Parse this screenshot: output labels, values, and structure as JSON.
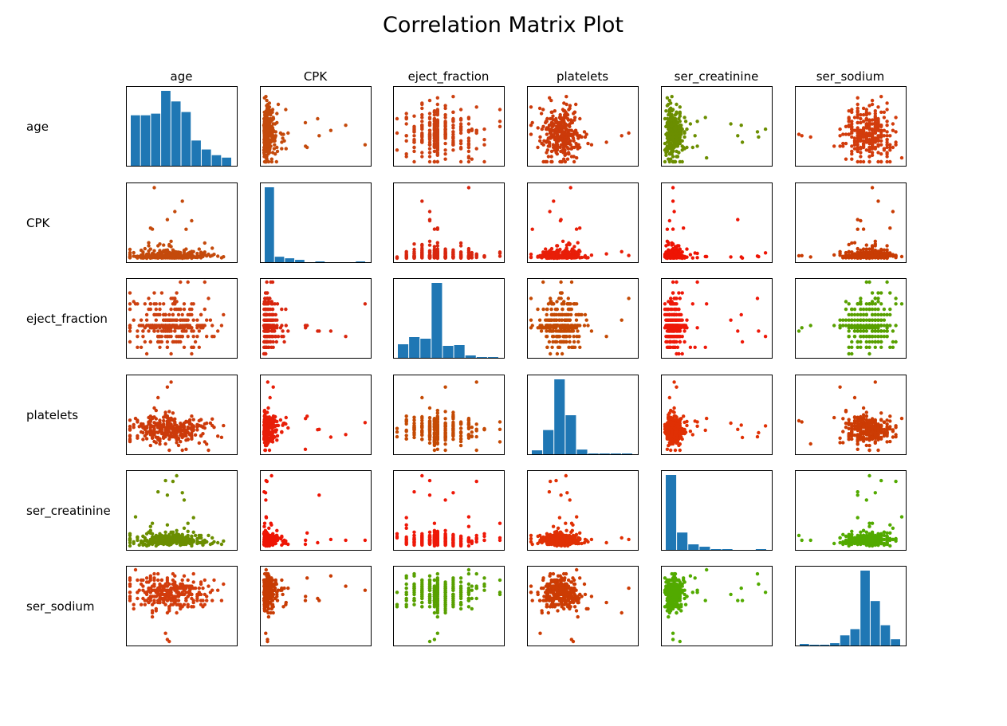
{
  "chart_data": {
    "type": "scatter",
    "title": "Correlation Matrix Plot",
    "variables": [
      "age",
      "CPK",
      "eject_fraction",
      "platelets",
      "ser_creatinine",
      "ser_sodium"
    ],
    "diagonal": "histogram",
    "off_diagonal": "scatter",
    "grid": false,
    "ticks": false,
    "colors": {
      "histogram": "#1f77b4",
      "pairs": {
        "age|CPK": "#c44a0c",
        "age|eject_fraction": "#cc4010",
        "age|platelets": "#cc3a0a",
        "age|ser_creatinine": "#6b8e00",
        "age|ser_sodium": "#d23c0c",
        "CPK|eject_fraction": "#d8260e",
        "CPK|platelets": "#e81e08",
        "CPK|ser_creatinine": "#ee1404",
        "CPK|ser_sodium": "#c83c04",
        "eject_fraction|platelets": "#c44a04",
        "eject_fraction|ser_creatinine": "#ee1808",
        "eject_fraction|ser_sodium": "#58a000",
        "platelets|ser_creatinine": "#e03004",
        "platelets|ser_sodium": "#cc3c04",
        "ser_creatinine|ser_sodium": "#52aa00"
      }
    },
    "histograms": {
      "age": [
        62,
        62,
        64,
        92,
        79,
        66,
        31,
        20,
        13,
        10
      ],
      "CPK": [
        96,
        7,
        5,
        3,
        0,
        1,
        0,
        0,
        0,
        1
      ],
      "eject_fraction": [
        17,
        26,
        24,
        94,
        15,
        16,
        3,
        1,
        1
      ],
      "platelets": [
        5,
        31,
        96,
        50,
        6,
        1,
        1,
        1,
        1
      ],
      "ser_creatinine": [
        95,
        22,
        7,
        4,
        1,
        1,
        0,
        0,
        1
      ],
      "ser_sodium": [
        2,
        1,
        1,
        3,
        13,
        21,
        96,
        57,
        26,
        8
      ]
    },
    "ranges": {
      "age": [
        40,
        95
      ],
      "CPK": [
        23,
        7861
      ],
      "eject_fraction": [
        14,
        80
      ],
      "platelets": [
        25100,
        850000
      ],
      "ser_creatinine": [
        0.5,
        9.4
      ],
      "ser_sodium": [
        113,
        148
      ]
    },
    "n_points": 299
  }
}
